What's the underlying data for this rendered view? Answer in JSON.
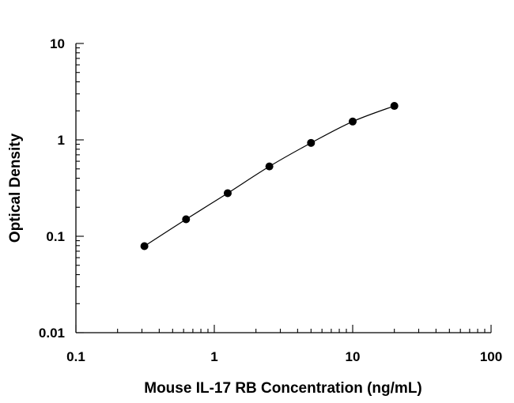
{
  "chart_data": {
    "type": "scatter",
    "title": "",
    "xlabel": "Mouse IL-17 RB Concentration (ng/mL)",
    "ylabel": "Optical Density",
    "x_scale": "log",
    "y_scale": "log",
    "xlim": [
      0.1,
      100
    ],
    "ylim": [
      0.01,
      10
    ],
    "x_ticks": [
      "0.1",
      "1",
      "10",
      "100"
    ],
    "y_ticks": [
      "0.01",
      "0.1",
      "1",
      "10"
    ],
    "grid": false,
    "legend": "none",
    "colors": {
      "axis": "#000000",
      "marker": "#000000",
      "curve": "#000000"
    },
    "series": [
      {
        "x": [
          0.3125,
          0.625,
          1.25,
          2.5,
          5,
          10,
          20
        ],
        "y": [
          0.079,
          0.15,
          0.28,
          0.53,
          0.93,
          1.55,
          2.25
        ]
      }
    ]
  }
}
